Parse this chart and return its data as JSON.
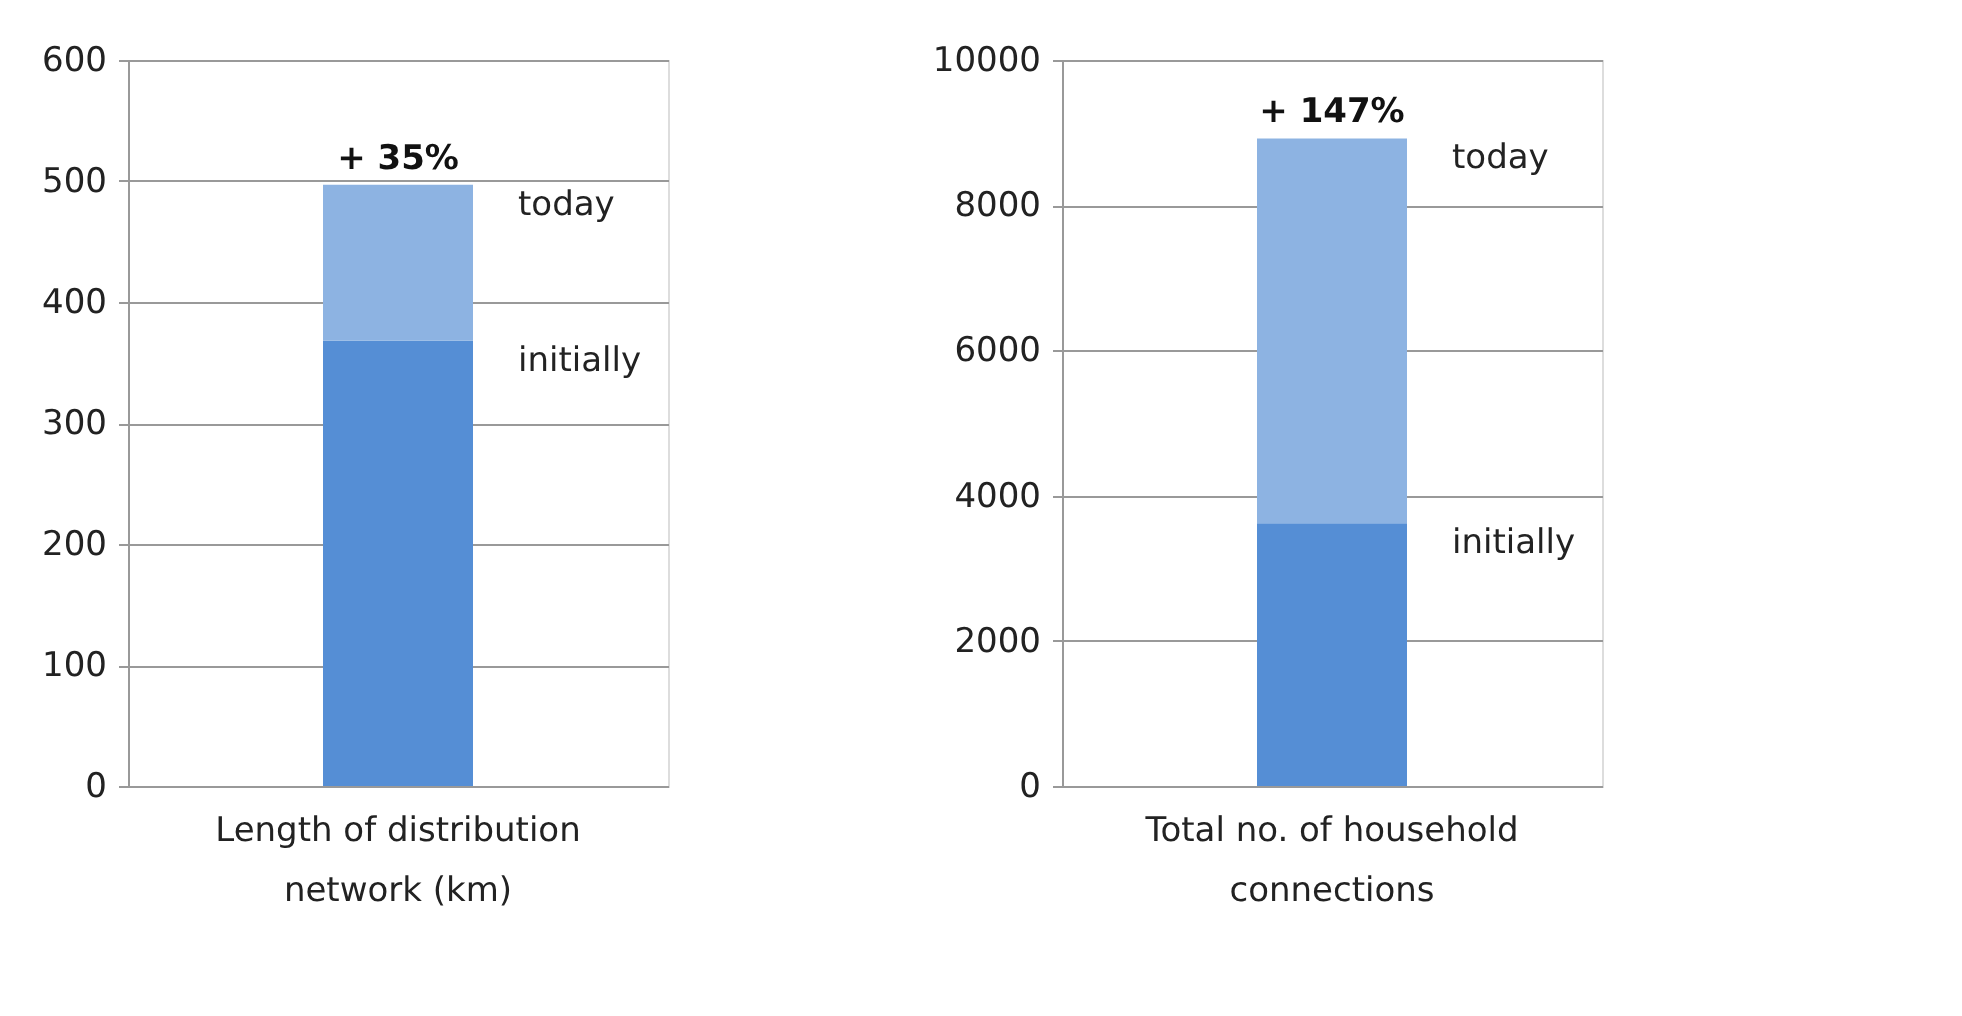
{
  "chart_data": [
    {
      "type": "bar",
      "stacked": true,
      "categories": [
        "Length of distribution network (km)"
      ],
      "series": [
        {
          "name": "initially",
          "color": "#558ed5",
          "values": [
            368
          ]
        },
        {
          "name": "today",
          "color": "#8db3e2",
          "values": [
            129
          ]
        }
      ],
      "ylim": [
        0,
        600
      ],
      "yticks": [
        0,
        100,
        200,
        300,
        400,
        500,
        600
      ],
      "grid": "y",
      "legend": false,
      "annotations": [
        {
          "text": "+ 35%",
          "x": "Length of distribution network (km)",
          "y": 497
        }
      ]
    },
    {
      "type": "bar",
      "stacked": true,
      "categories": [
        "Total no. of household connections"
      ],
      "series": [
        {
          "name": "initially",
          "color": "#558ed5",
          "values": [
            3620
          ]
        },
        {
          "name": "today",
          "color": "#8db3e2",
          "values": [
            5300
          ]
        }
      ],
      "ylim": [
        0,
        10000
      ],
      "yticks": [
        0,
        2000,
        4000,
        6000,
        8000,
        10000
      ],
      "grid": "y",
      "legend": false,
      "annotations": [
        {
          "text": "+ 147%",
          "x": "Total no. of household connections",
          "y": 8920
        }
      ]
    }
  ]
}
